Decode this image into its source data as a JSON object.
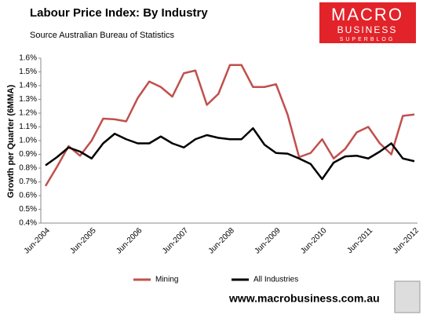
{
  "chart_data": {
    "type": "line",
    "title": "Labour Price Index: By Industry",
    "subtitle": "Source Australian Bureau of Statistics",
    "y_label": "Growth per Quarter (6MMA)",
    "categories": [
      "Jun-2004",
      null,
      null,
      null,
      "Jun-2005",
      null,
      null,
      null,
      "Jun-2006",
      null,
      null,
      null,
      "Jun-2007",
      null,
      null,
      null,
      "Jun-2008",
      null,
      null,
      null,
      "Jun-2009",
      null,
      null,
      null,
      "Jun-2010",
      null,
      null,
      null,
      "Jun-2011",
      null,
      null,
      null,
      "Jun-2012"
    ],
    "series": [
      {
        "name": "Mining",
        "color": "#c0504d",
        "values": [
          0.67,
          0.81,
          0.96,
          0.89,
          1.0,
          1.16,
          1.155,
          1.14,
          1.31,
          1.43,
          1.39,
          1.32,
          1.49,
          1.51,
          1.26,
          1.34,
          1.55,
          1.55,
          1.39,
          1.39,
          1.41,
          1.19,
          0.88,
          0.91,
          1.01,
          0.87,
          0.94,
          1.06,
          1.1,
          0.98,
          0.9,
          1.18,
          1.19
        ]
      },
      {
        "name": "All Industries",
        "color": "#000000",
        "values": [
          0.82,
          0.88,
          0.95,
          0.92,
          0.87,
          0.98,
          1.05,
          1.01,
          0.98,
          0.98,
          1.03,
          0.98,
          0.95,
          1.01,
          1.04,
          1.02,
          1.01,
          1.01,
          1.09,
          0.97,
          0.91,
          0.905,
          0.87,
          0.83,
          0.72,
          0.84,
          0.885,
          0.89,
          0.87,
          0.92,
          0.98,
          0.87,
          0.85
        ]
      }
    ],
    "ylim": [
      0.4,
      1.6
    ],
    "yticks": [
      {
        "value": 0.4,
        "label": "0.4%"
      },
      {
        "value": 0.5,
        "label": "0.5%"
      },
      {
        "value": 0.6,
        "label": "0.6%"
      },
      {
        "value": 0.7,
        "label": "0.7%"
      },
      {
        "value": 0.8,
        "label": "0.8%"
      },
      {
        "value": 0.9,
        "label": "0.9%"
      },
      {
        "value": 1.0,
        "label": "1.0%"
      },
      {
        "value": 1.1,
        "label": "1.1%"
      },
      {
        "value": 1.2,
        "label": "1.2%"
      },
      {
        "value": 1.3,
        "label": "1.3%"
      },
      {
        "value": 1.4,
        "label": "1.4%"
      },
      {
        "value": 1.5,
        "label": "1.5%"
      },
      {
        "value": 1.6,
        "label": "1.6%"
      }
    ],
    "grid": false,
    "legend": "bottom"
  },
  "logo": {
    "line1": "MACRO",
    "line2": "BUSINESS",
    "line3": "SUPERBLOG"
  },
  "footer": "www.macrobusiness.com.au"
}
